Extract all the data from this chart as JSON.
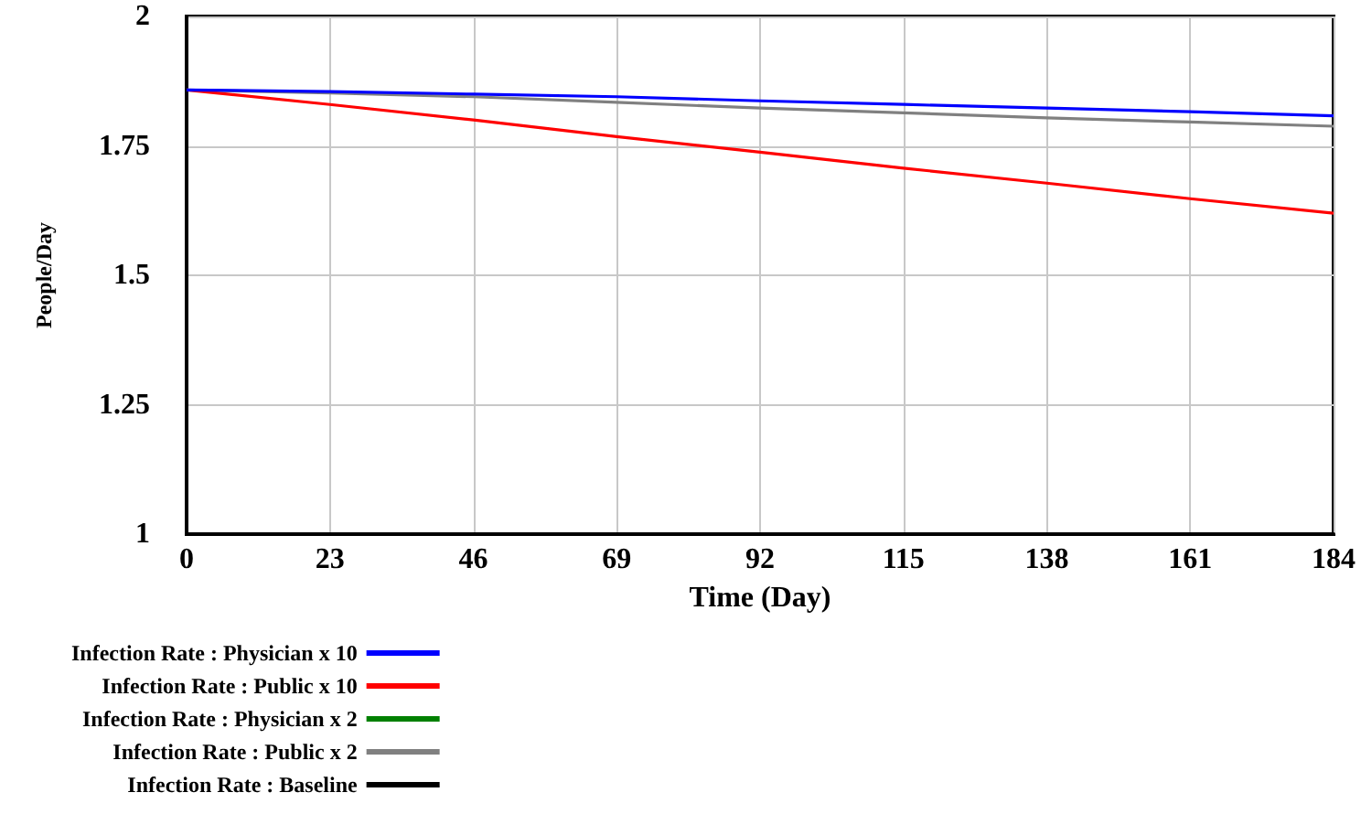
{
  "chart_data": {
    "type": "line",
    "xlabel": "Time (Day)",
    "ylabel": "People/Day",
    "x": [
      0,
      23,
      46,
      69,
      92,
      115,
      138,
      161,
      184
    ],
    "series": [
      {
        "name": "Infection Rate : Physician x 10",
        "color": "#0000ff",
        "values": [
          1.858,
          1.855,
          1.85,
          1.845,
          1.837,
          1.83,
          1.823,
          1.816,
          1.808
        ]
      },
      {
        "name": "Infection Rate : Public x 10",
        "color": "#ff0000",
        "values": [
          1.858,
          1.83,
          1.8,
          1.768,
          1.738,
          1.707,
          1.678,
          1.648,
          1.62
        ]
      },
      {
        "name": "Infection Rate : Physician x 2",
        "color": "#008000",
        "values": [
          null,
          null,
          null,
          null,
          null,
          null,
          null,
          null,
          null
        ]
      },
      {
        "name": "Infection Rate : Public x 2",
        "color": "#808080",
        "values": [
          1.858,
          1.852,
          1.845,
          1.834,
          1.823,
          1.814,
          1.804,
          1.796,
          1.788
        ]
      },
      {
        "name": "Infection Rate : Baseline",
        "color": "#000000",
        "values": [
          null,
          null,
          null,
          null,
          null,
          null,
          null,
          null,
          null
        ]
      }
    ],
    "xlim": [
      0,
      184
    ],
    "xticks": [
      0,
      23,
      46,
      69,
      92,
      115,
      138,
      161,
      184
    ],
    "ylim": [
      1,
      2
    ],
    "yticks": [
      1,
      1.25,
      1.5,
      1.75,
      2
    ],
    "grid": true,
    "legend": "bottom",
    "marker": "none",
    "line_style": "solid"
  }
}
